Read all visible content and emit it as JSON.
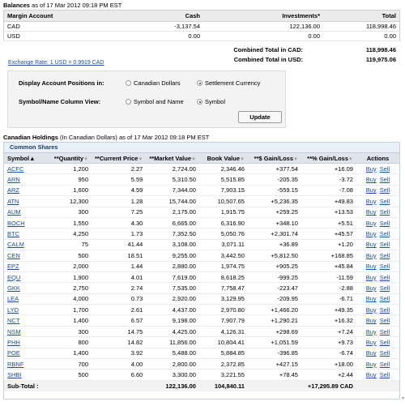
{
  "balances": {
    "title": "Balances",
    "as_of": "as of 17 Mar 2012 09:18 PM EST",
    "headers": [
      "Margin Account",
      "Cash",
      "Investments*",
      "Total"
    ],
    "rows": [
      [
        "CAD",
        "-3,137.54",
        "122,136.00",
        "118,998.46"
      ],
      [
        "USD",
        "0.00",
        "0.00",
        "0.00"
      ]
    ],
    "combined_cad_label": "Combined Total in CAD:",
    "combined_cad_value": "118,998.46",
    "combined_usd_label": "Combined Total in USD:",
    "combined_usd_value": "119,975.06",
    "exchange_rate": "Exchange Rate: 1 USD = 0.9919 CAD"
  },
  "settings": {
    "display_label": "Display Account Positions in:",
    "display_options": [
      "Canadian Dollars",
      "Settlement Currency"
    ],
    "display_selected": "Settlement Currency",
    "symbol_label": "Symbol/Name Column View:",
    "symbol_options": [
      "Symbol and Name",
      "Symbol"
    ],
    "symbol_selected": "Symbol",
    "update_button": "Update"
  },
  "holdings": {
    "title": "Canadian Holdings",
    "subtitle": "(In Canadian Dollars) as of 17 Mar 2012 09:18 PM EST",
    "section": "Common Shares",
    "headers": [
      "Symbol▲",
      "**Quantity",
      "**Current Price",
      "**Market Value",
      "Book Value",
      "**$ Gain/Loss",
      "**% Gain/Loss",
      "Actions"
    ],
    "action_buy": "Buy",
    "action_sell": "Sell",
    "rows": [
      [
        "ACFC",
        "1,200",
        "2.27",
        "2,724.00",
        "2,346.46",
        "+377.54",
        "+16.09"
      ],
      [
        "ARN",
        "950",
        "5.59",
        "5,310.50",
        "5,515.85",
        "-205.35",
        "-3.72"
      ],
      [
        "ARZ",
        "1,600",
        "4.59",
        "7,344.00",
        "7,903.15",
        "-559.15",
        "-7.08"
      ],
      [
        "ATN",
        "12,300",
        "1.28",
        "15,744.00",
        "10,507.65",
        "+5,236.35",
        "+49.83"
      ],
      [
        "AUM",
        "300",
        "7.25",
        "2,175.00",
        "1,915.75",
        "+259.25",
        "+13.53"
      ],
      [
        "BOCH",
        "1,550",
        "4.30",
        "6,665.00",
        "6,316.90",
        "+348.10",
        "+5.51"
      ],
      [
        "BTC",
        "4,250",
        "1.73",
        "7,352.50",
        "5,050.76",
        "+2,301.74",
        "+45.57"
      ],
      [
        "CALM",
        "75",
        "41.44",
        "3,108.00",
        "3,071.11",
        "+36.89",
        "+1.20"
      ],
      [
        "CEN",
        "500",
        "18.51",
        "9,255.00",
        "3,442.50",
        "+5,812.50",
        "+168.85"
      ],
      [
        "EPZ",
        "2,000",
        "1.44",
        "2,880.00",
        "1,974.75",
        "+905.25",
        "+45.84"
      ],
      [
        "EQU",
        "1,900",
        "4.01",
        "7,619.00",
        "8,618.25",
        "-999.25",
        "-11.59"
      ],
      [
        "GKK",
        "2,750",
        "2.74",
        "7,535.00",
        "7,758.47",
        "-223.47",
        "-2.88"
      ],
      [
        "LEA",
        "4,000",
        "0.73",
        "2,920.00",
        "3,129.95",
        "-209.95",
        "-6.71"
      ],
      [
        "LYD",
        "1,700",
        "2.61",
        "4,437.00",
        "2,970.80",
        "+1,466.20",
        "+49.35"
      ],
      [
        "NCT",
        "1,400",
        "6.57",
        "9,198.00",
        "7,907.79",
        "+1,290.21",
        "+16.32"
      ],
      [
        "NSM",
        "300",
        "14.75",
        "4,425.00",
        "4,126.31",
        "+298.69",
        "+7.24"
      ],
      [
        "PHH",
        "800",
        "14.82",
        "11,856.00",
        "10,804.41",
        "+1,051.59",
        "+9.73"
      ],
      [
        "POE",
        "1,400",
        "3.92",
        "5,488.00",
        "5,884.85",
        "-396.85",
        "-6.74"
      ],
      [
        "RBNF",
        "700",
        "4.00",
        "2,800.00",
        "2,372.85",
        "+427.15",
        "+18.00"
      ],
      [
        "SHBI",
        "500",
        "6.60",
        "3,300.00",
        "3,221.55",
        "+78.45",
        "+2.44"
      ]
    ],
    "subtotal_label": "Sub-Total :",
    "subtotal_market": "122,136.00",
    "subtotal_book": "104,840.11",
    "subtotal_gain": "+17,295.89 CAD"
  },
  "colors": {
    "link": "#1a4fa3",
    "section_bg": "#e7f0f8",
    "header_bg": "#dfe4ea"
  }
}
